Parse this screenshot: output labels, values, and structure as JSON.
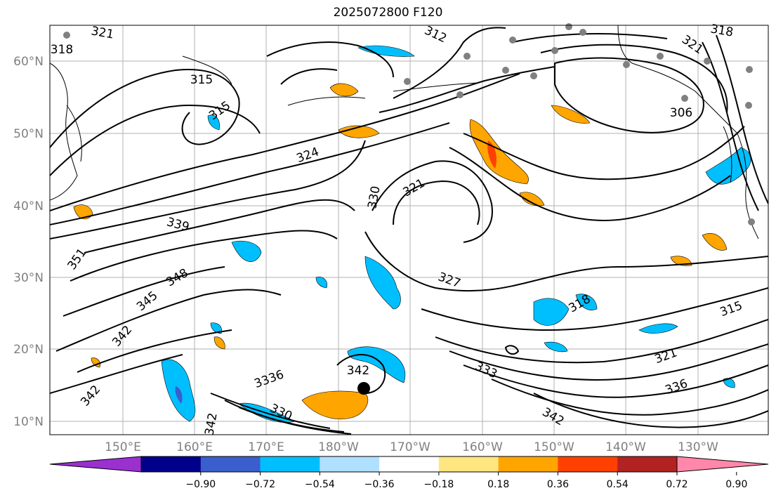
{
  "title": "2025072800 F120",
  "lat_labels": [
    "60°N",
    "50°N",
    "40°N",
    "30°N",
    "20°N",
    "10°N"
  ],
  "lon_labels": [
    "150°E",
    "160°E",
    "170°E",
    "180°W",
    "170°W",
    "160°W",
    "150°W",
    "140°W",
    "130°W"
  ],
  "colorbar": {
    "ticks": [
      "−0.90",
      "−0.72",
      "−0.54",
      "−0.36",
      "−0.18",
      "0.18",
      "0.36",
      "0.54",
      "0.72",
      "0.90"
    ],
    "colors": [
      "#9b30d0",
      "#00008b",
      "#3a5fcd",
      "#00bfff",
      "#b0e0ff",
      "#ffffff",
      "#ffe680",
      "#ffa500",
      "#ff4000",
      "#b22222",
      "#ff88aa"
    ]
  },
  "contour_labels": [
    {
      "text": "321"
    },
    {
      "text": "318"
    },
    {
      "text": "315"
    },
    {
      "text": "315"
    },
    {
      "text": "312"
    },
    {
      "text": "324"
    },
    {
      "text": "321"
    },
    {
      "text": "330"
    },
    {
      "text": "339"
    },
    {
      "text": "351"
    },
    {
      "text": "348"
    },
    {
      "text": "345"
    },
    {
      "text": "342"
    },
    {
      "text": "327"
    },
    {
      "text": "318"
    },
    {
      "text": "315"
    },
    {
      "text": "321"
    },
    {
      "text": "336"
    },
    {
      "text": "333"
    },
    {
      "text": "342"
    },
    {
      "text": "342"
    },
    {
      "text": "3336"
    },
    {
      "text": "330"
    },
    {
      "text": "342"
    },
    {
      "text": "306"
    },
    {
      "text": "318"
    },
    {
      "text": "321"
    },
    {
      "text": "342"
    }
  ]
}
